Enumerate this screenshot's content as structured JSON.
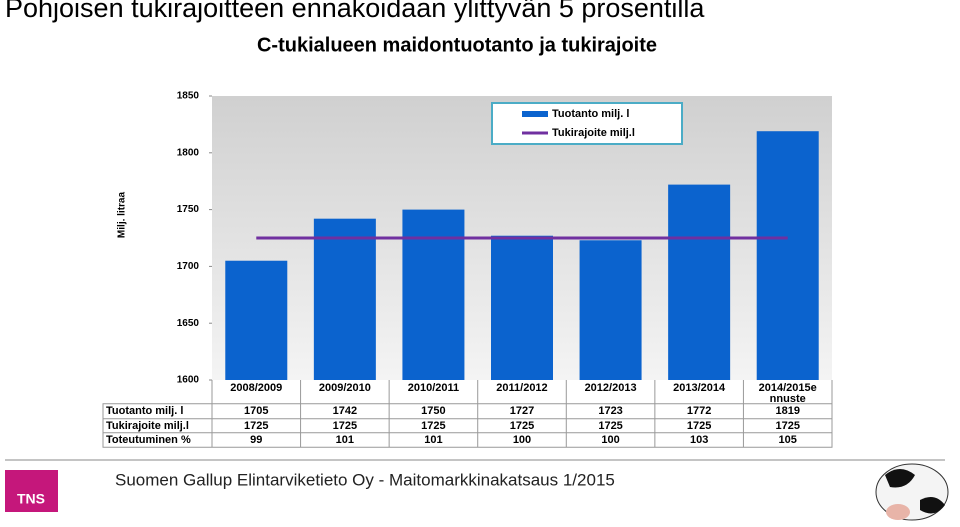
{
  "slide_title": "Pohjoisen tukirajoitteen ennakoidaan ylittyvän 5 prosentilla",
  "chart_data": {
    "type": "bar",
    "title": "C-tukialueen maidontuotanto ja tukirajoite",
    "y_label": "Milj. litraa",
    "categories": [
      "2008/2009",
      "2009/2010",
      "2010/2011",
      "2011/2012",
      "2012/2013",
      "2013/2014",
      "2014/2015e nnuste"
    ],
    "series": [
      {
        "name": "Tuotanto milj. l",
        "type": "bar",
        "color": "#0b63ce",
        "values": [
          1705,
          1742,
          1750,
          1727,
          1723,
          1772,
          1819
        ]
      },
      {
        "name": "Tukirajoite milj.l",
        "type": "line",
        "color": "#7030a0",
        "values": [
          1725,
          1725,
          1725,
          1725,
          1725,
          1725,
          1725
        ]
      }
    ],
    "table_rows": [
      {
        "name": "Toteutuminen %",
        "values": [
          99,
          101,
          101,
          100,
          100,
          103,
          105
        ]
      }
    ],
    "ylim": [
      1600,
      1850
    ],
    "yticks": [
      1600,
      1650,
      1700,
      1750,
      1800,
      1850
    ]
  },
  "footer": "Suomen Gallup Elintarviketieto Oy - Maitomarkkinakatsaus 1/2015",
  "logo": "TNS"
}
